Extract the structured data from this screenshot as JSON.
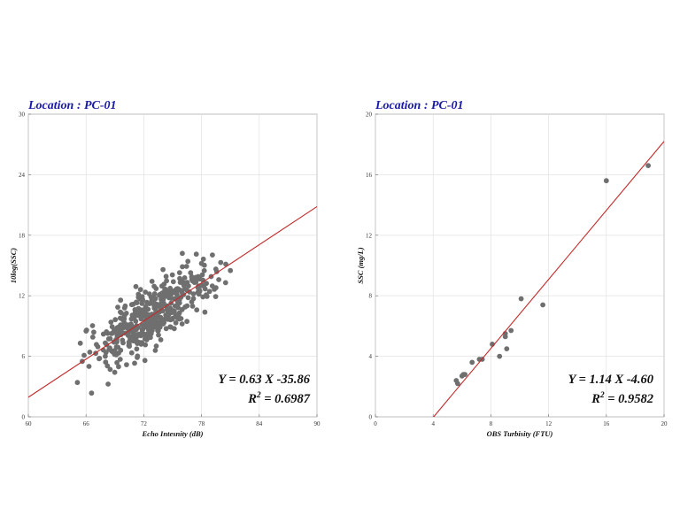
{
  "chart_data": [
    {
      "type": "scatter",
      "title": "Location : PC-01",
      "xlabel": "Echo Intesnity (dB)",
      "ylabel": "10log(SSC)",
      "xlim": [
        60,
        90
      ],
      "ylim": [
        0,
        30
      ],
      "xticks": [
        60,
        66,
        72,
        78,
        84,
        90
      ],
      "yticks": [
        0,
        6,
        12,
        18,
        24,
        30
      ],
      "grid": true,
      "fit": {
        "slope": 0.63,
        "intercept": -35.86,
        "r2": 0.6987
      },
      "equation": "Y = 0.63 X -35.86",
      "r2_prefix": "R",
      "r2_sup": "2",
      "r2_value": " = 0.6987",
      "cloud": {
        "count": 430,
        "x_min": 65.0,
        "x_max": 81.2,
        "spread": 1.6
      },
      "series": [
        {
          "x": [
            65.1,
            65.4,
            65.6,
            65.8,
            66.0,
            66.3,
            66.7,
            67.0,
            67.4,
            67.8,
            68.0,
            68.5,
            68.9,
            69.2,
            69.6,
            70.0,
            70.5,
            71.0,
            71.5,
            72.0,
            72.5,
            73.0,
            73.5,
            74.0,
            74.5,
            75.0,
            75.5,
            76.0,
            76.5,
            77.0,
            77.5,
            78.0,
            78.5,
            79.0,
            79.5,
            80.0,
            80.5,
            81.0
          ],
          "y": [
            3.4,
            7.3,
            5.5,
            6.1,
            8.5,
            5.0,
            7.9,
            6.3,
            5.8,
            8.2,
            6.0,
            4.7,
            7.4,
            8.4,
            6.6,
            9.2,
            7.0,
            9.8,
            8.2,
            10.6,
            8.6,
            11.4,
            9.1,
            14.6,
            10.2,
            12.3,
            9.8,
            16.2,
            11.0,
            13.6,
            10.6,
            15.2,
            12.1,
            13.9,
            12.8,
            15.3,
            13.3,
            14.5
          ]
        }
      ]
    },
    {
      "type": "scatter",
      "title": "Location : PC-01",
      "xlabel": "OBS Turbisity (FTU)",
      "ylabel": "SSC (mg/L)",
      "xlim": [
        0,
        20
      ],
      "ylim": [
        0,
        20
      ],
      "xticks": [
        0,
        4,
        8,
        12,
        16,
        20
      ],
      "yticks": [
        0,
        4,
        8,
        12,
        16,
        20
      ],
      "grid": true,
      "fit": {
        "slope": 1.14,
        "intercept": -4.6,
        "r2": 0.9582
      },
      "equation": "Y = 1.14 X -4.60",
      "r2_prefix": "R",
      "r2_sup": "2",
      "r2_value": " = 0.9582",
      "series": [
        {
          "x": [
            5.6,
            5.7,
            6.0,
            6.1,
            6.2,
            6.7,
            7.2,
            7.4,
            8.1,
            8.6,
            9.0,
            9.0,
            9.1,
            9.4,
            10.1,
            11.6,
            16.0,
            18.9
          ],
          "y": [
            2.4,
            2.2,
            2.7,
            2.8,
            2.8,
            3.6,
            3.8,
            3.8,
            4.8,
            4.0,
            5.3,
            5.5,
            4.5,
            5.7,
            7.8,
            7.4,
            15.6,
            16.6
          ]
        }
      ]
    }
  ]
}
